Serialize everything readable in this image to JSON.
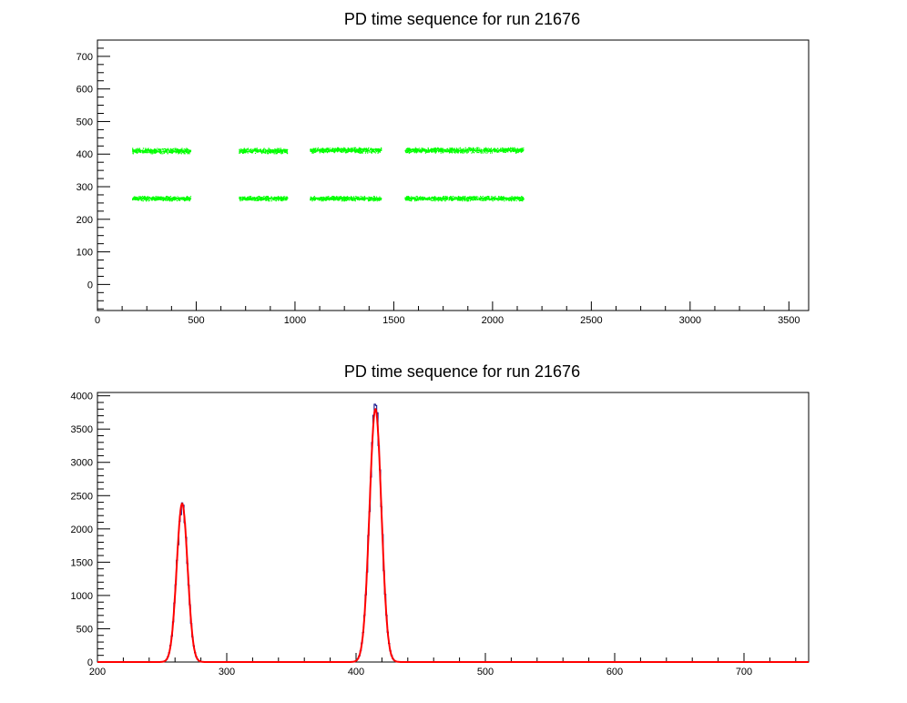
{
  "chart_data": [
    {
      "type": "scatter",
      "title": "PD time sequence for run 21676",
      "xlabel": "",
      "ylabel": "",
      "xlim": [
        0,
        3600
      ],
      "ylim": [
        -80,
        750
      ],
      "xticks": [
        0,
        500,
        1000,
        1500,
        2000,
        2500,
        3000,
        3500
      ],
      "yticks": [
        0,
        100,
        200,
        300,
        400,
        500,
        600,
        700
      ],
      "grid": false,
      "marker_color": "#00ff00",
      "series": [
        {
          "segments": [
            {
              "x_start": 175,
              "x_end": 470,
              "y": 411,
              "spread": 8
            },
            {
              "x_start": 715,
              "x_end": 960,
              "y": 411,
              "spread": 8
            },
            {
              "x_start": 1075,
              "x_end": 1435,
              "y": 413,
              "spread": 8
            },
            {
              "x_start": 1555,
              "x_end": 2155,
              "y": 413,
              "spread": 8
            },
            {
              "x_start": 175,
              "x_end": 470,
              "y": 265,
              "spread": 7
            },
            {
              "x_start": 715,
              "x_end": 960,
              "y": 265,
              "spread": 7
            },
            {
              "x_start": 1075,
              "x_end": 1435,
              "y": 265,
              "spread": 7
            },
            {
              "x_start": 1555,
              "x_end": 2155,
              "y": 265,
              "spread": 7
            }
          ]
        }
      ]
    },
    {
      "type": "line",
      "title": "PD time sequence for run 21676",
      "xlabel": "",
      "ylabel": "",
      "xlim": [
        200,
        750
      ],
      "ylim": [
        0,
        4050
      ],
      "xticks": [
        200,
        300,
        400,
        500,
        600,
        700
      ],
      "yticks": [
        0,
        500,
        1000,
        1500,
        2000,
        2500,
        3000,
        3500,
        4000
      ],
      "grid": false,
      "histogram_color": "#000080",
      "fit_color": "#ff0000",
      "peaks": [
        {
          "mean": 265.5,
          "amplitude": 2380,
          "sigma": 4.2
        },
        {
          "mean": 415,
          "amplitude": 3800,
          "sigma": 4.6
        }
      ]
    }
  ]
}
